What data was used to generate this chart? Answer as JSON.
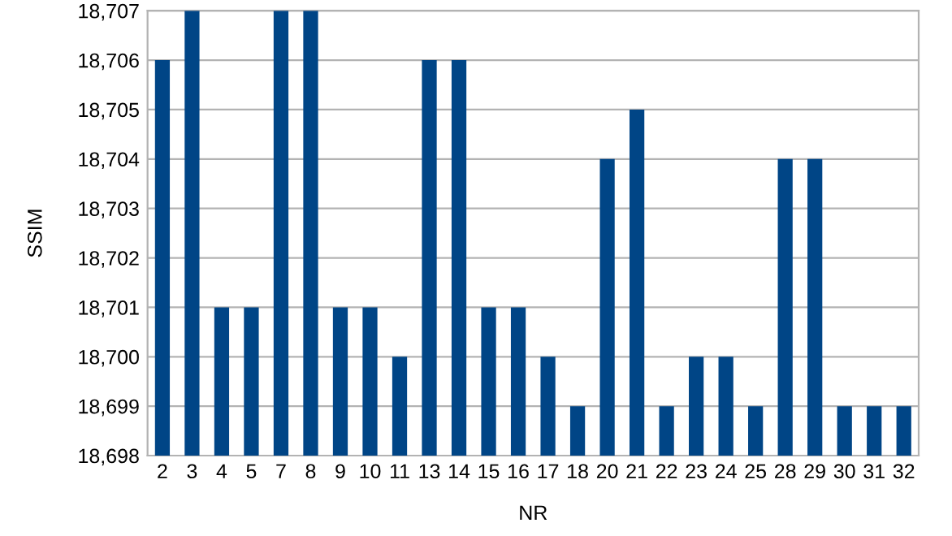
{
  "chart_data": {
    "type": "bar",
    "xlabel": "NR",
    "ylabel": "SSIM",
    "categories": [
      "2",
      "3",
      "4",
      "5",
      "7",
      "8",
      "9",
      "10",
      "11",
      "13",
      "14",
      "15",
      "16",
      "17",
      "18",
      "20",
      "21",
      "22",
      "23",
      "24",
      "25",
      "28",
      "29",
      "30",
      "31",
      "32"
    ],
    "values": [
      18706,
      18707,
      18701,
      18701,
      18707,
      18707,
      18701,
      18701,
      18700,
      18706,
      18706,
      18701,
      18701,
      18700,
      18699,
      18704,
      18705,
      18699,
      18700,
      18700,
      18699,
      18704,
      18704,
      18699,
      18699,
      18699
    ],
    "color": "#004586",
    "ylim": [
      18698,
      18707
    ],
    "yticks": [
      {
        "value": 18698,
        "label": "18,698"
      },
      {
        "value": 18699,
        "label": "18,699"
      },
      {
        "value": 18700,
        "label": "18,700"
      },
      {
        "value": 18701,
        "label": "18,701"
      },
      {
        "value": 18702,
        "label": "18,702"
      },
      {
        "value": 18703,
        "label": "18,703"
      },
      {
        "value": 18704,
        "label": "18,704"
      },
      {
        "value": 18705,
        "label": "18,705"
      },
      {
        "value": 18706,
        "label": "18,706"
      },
      {
        "value": 18707,
        "label": "18,707"
      }
    ],
    "grid": "y",
    "legend": false
  }
}
